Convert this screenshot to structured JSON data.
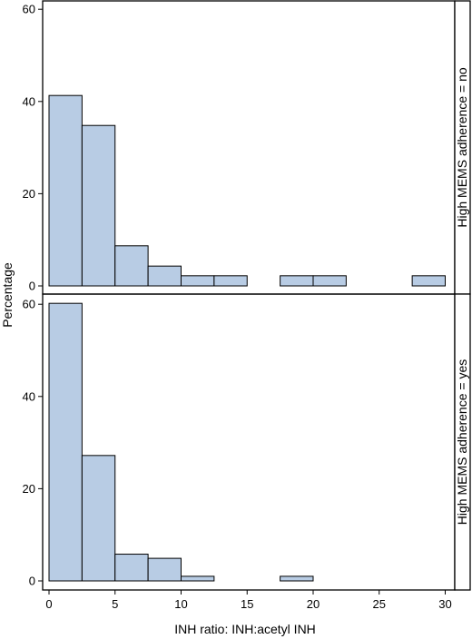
{
  "chart_data": {
    "type": "bar",
    "xlabel": "INH ratio: INH:acetyl INH",
    "ylabel": "Percentage",
    "xlim": [
      -0.5,
      31
    ],
    "ylim": [
      0,
      60
    ],
    "x_ticks": [
      0,
      5,
      10,
      15,
      20,
      25,
      30
    ],
    "y_ticks": [
      0,
      20,
      40,
      60
    ],
    "bin_width": 2.5,
    "bar_color": "#b8cce4",
    "grid": false,
    "panels": [
      {
        "label": "High MEMS adherence = no",
        "bins": [
          {
            "x0": 0,
            "value": 41.3
          },
          {
            "x0": 2.5,
            "value": 34.8
          },
          {
            "x0": 5,
            "value": 8.7
          },
          {
            "x0": 7.5,
            "value": 4.3
          },
          {
            "x0": 10,
            "value": 2.2
          },
          {
            "x0": 12.5,
            "value": 2.2
          },
          {
            "x0": 17.5,
            "value": 2.2
          },
          {
            "x0": 20,
            "value": 2.2
          },
          {
            "x0": 27.5,
            "value": 2.2
          }
        ]
      },
      {
        "label": "High MEMS adherence = yes",
        "bins": [
          {
            "x0": 0,
            "value": 60.2
          },
          {
            "x0": 2.5,
            "value": 27.2
          },
          {
            "x0": 5,
            "value": 5.8
          },
          {
            "x0": 7.5,
            "value": 4.9
          },
          {
            "x0": 10,
            "value": 1.0
          },
          {
            "x0": 17.5,
            "value": 1.0
          }
        ]
      }
    ]
  }
}
